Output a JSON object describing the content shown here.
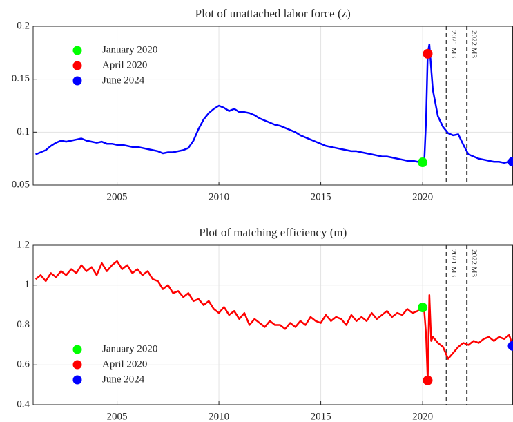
{
  "chart_data": [
    {
      "type": "line",
      "title": "Plot of unattached labor force (z)",
      "color": "#0000ff",
      "x": [
        2001,
        2001.25,
        2001.5,
        2001.75,
        2002,
        2002.25,
        2002.5,
        2002.75,
        2003,
        2003.25,
        2003.5,
        2003.75,
        2004,
        2004.25,
        2004.5,
        2004.75,
        2005,
        2005.25,
        2005.5,
        2005.75,
        2006,
        2006.25,
        2006.5,
        2006.75,
        2007,
        2007.25,
        2007.5,
        2007.75,
        2008,
        2008.25,
        2008.5,
        2008.75,
        2009,
        2009.25,
        2009.5,
        2009.75,
        2010,
        2010.25,
        2010.5,
        2010.75,
        2011,
        2011.25,
        2011.5,
        2011.75,
        2012,
        2012.25,
        2012.5,
        2012.75,
        2013,
        2013.25,
        2013.5,
        2013.75,
        2014,
        2014.25,
        2014.5,
        2014.75,
        2015,
        2015.25,
        2015.5,
        2015.75,
        2016,
        2016.25,
        2016.5,
        2016.75,
        2017,
        2017.25,
        2017.5,
        2017.75,
        2018,
        2018.25,
        2018.5,
        2018.75,
        2019,
        2019.25,
        2019.5,
        2019.75,
        2020,
        2020.08,
        2020.17,
        2020.25,
        2020.33,
        2020.42,
        2020.5,
        2020.75,
        2021,
        2021.25,
        2021.5,
        2021.75,
        2022,
        2022.25,
        2022.5,
        2022.75,
        2023,
        2023.25,
        2023.5,
        2023.75,
        2024,
        2024.25,
        2024.42
      ],
      "values": [
        0.079,
        0.081,
        0.083,
        0.087,
        0.09,
        0.092,
        0.091,
        0.092,
        0.093,
        0.094,
        0.092,
        0.091,
        0.09,
        0.091,
        0.089,
        0.089,
        0.088,
        0.088,
        0.087,
        0.086,
        0.086,
        0.085,
        0.084,
        0.083,
        0.082,
        0.08,
        0.081,
        0.081,
        0.082,
        0.083,
        0.085,
        0.092,
        0.103,
        0.112,
        0.118,
        0.122,
        0.125,
        0.123,
        0.12,
        0.122,
        0.119,
        0.119,
        0.118,
        0.116,
        0.113,
        0.111,
        0.109,
        0.107,
        0.106,
        0.104,
        0.102,
        0.1,
        0.097,
        0.095,
        0.093,
        0.091,
        0.089,
        0.087,
        0.086,
        0.085,
        0.084,
        0.083,
        0.082,
        0.082,
        0.081,
        0.08,
        0.079,
        0.078,
        0.077,
        0.077,
        0.076,
        0.075,
        0.074,
        0.073,
        0.073,
        0.072,
        0.0715,
        0.072,
        0.112,
        0.174,
        0.183,
        0.16,
        0.14,
        0.115,
        0.105,
        0.099,
        0.097,
        0.098,
        0.088,
        0.079,
        0.077,
        0.075,
        0.074,
        0.073,
        0.072,
        0.072,
        0.071,
        0.072,
        0.072
      ],
      "xlim": [
        2000.88,
        2024.42
      ],
      "xticks": [
        2005,
        2010,
        2015,
        2020
      ],
      "ylim": [
        0.05,
        0.2
      ],
      "yticks": [
        0.05,
        0.1,
        0.15,
        0.2
      ],
      "grid": true,
      "legend": "upper left",
      "highlights": [
        {
          "name": "January 2020",
          "color": "#00ff00",
          "x": 2020,
          "y": 0.0715
        },
        {
          "name": "April 2020",
          "color": "#ff0000",
          "x": 2020.25,
          "y": 0.174
        },
        {
          "name": "June 2024",
          "color": "#0000ff",
          "x": 2024.42,
          "y": 0.072
        }
      ],
      "vlines": [
        {
          "x": 2021.17,
          "label": "2021 M3"
        },
        {
          "x": 2022.17,
          "label": "2022 M3"
        }
      ]
    },
    {
      "type": "line",
      "title": "Plot of matching efficiency (m)",
      "color": "#ff0000",
      "x": [
        2001,
        2001.25,
        2001.5,
        2001.75,
        2002,
        2002.25,
        2002.5,
        2002.75,
        2003,
        2003.25,
        2003.5,
        2003.75,
        2004,
        2004.25,
        2004.5,
        2004.75,
        2005,
        2005.25,
        2005.5,
        2005.75,
        2006,
        2006.25,
        2006.5,
        2006.75,
        2007,
        2007.25,
        2007.5,
        2007.75,
        2008,
        2008.25,
        2008.5,
        2008.75,
        2009,
        2009.25,
        2009.5,
        2009.75,
        2010,
        2010.25,
        2010.5,
        2010.75,
        2011,
        2011.25,
        2011.5,
        2011.75,
        2012,
        2012.25,
        2012.5,
        2012.75,
        2013,
        2013.25,
        2013.5,
        2013.75,
        2014,
        2014.25,
        2014.5,
        2014.75,
        2015,
        2015.25,
        2015.5,
        2015.75,
        2016,
        2016.25,
        2016.5,
        2016.75,
        2017,
        2017.25,
        2017.5,
        2017.75,
        2018,
        2018.25,
        2018.5,
        2018.75,
        2019,
        2019.25,
        2019.5,
        2019.75,
        2020,
        2020.08,
        2020.17,
        2020.25,
        2020.33,
        2020.42,
        2020.5,
        2020.75,
        2021,
        2021.25,
        2021.5,
        2021.75,
        2022,
        2022.25,
        2022.5,
        2022.75,
        2023,
        2023.25,
        2023.5,
        2023.75,
        2024,
        2024.25,
        2024.42
      ],
      "values": [
        1.03,
        1.05,
        1.02,
        1.06,
        1.04,
        1.07,
        1.05,
        1.08,
        1.06,
        1.1,
        1.07,
        1.09,
        1.05,
        1.11,
        1.07,
        1.1,
        1.12,
        1.08,
        1.1,
        1.06,
        1.08,
        1.05,
        1.07,
        1.03,
        1.02,
        0.98,
        1.0,
        0.96,
        0.97,
        0.94,
        0.96,
        0.92,
        0.93,
        0.9,
        0.92,
        0.88,
        0.86,
        0.89,
        0.85,
        0.87,
        0.83,
        0.86,
        0.8,
        0.83,
        0.81,
        0.79,
        0.82,
        0.8,
        0.8,
        0.78,
        0.81,
        0.79,
        0.82,
        0.8,
        0.84,
        0.82,
        0.81,
        0.85,
        0.82,
        0.84,
        0.83,
        0.8,
        0.85,
        0.82,
        0.84,
        0.82,
        0.86,
        0.83,
        0.85,
        0.87,
        0.84,
        0.86,
        0.85,
        0.88,
        0.86,
        0.87,
        0.888,
        0.87,
        0.75,
        0.522,
        0.95,
        0.72,
        0.74,
        0.71,
        0.69,
        0.63,
        0.66,
        0.69,
        0.71,
        0.7,
        0.72,
        0.71,
        0.73,
        0.74,
        0.72,
        0.74,
        0.73,
        0.75,
        0.695
      ],
      "xlim": [
        2000.88,
        2024.42
      ],
      "xticks": [
        2005,
        2010,
        2015,
        2020
      ],
      "ylim": [
        0.4,
        1.2
      ],
      "yticks": [
        0.4,
        0.6,
        0.8,
        1,
        1.2
      ],
      "grid": true,
      "legend": "lower left",
      "highlights": [
        {
          "name": "January 2020",
          "color": "#00ff00",
          "x": 2020,
          "y": 0.888
        },
        {
          "name": "April 2020",
          "color": "#ff0000",
          "x": 2020.25,
          "y": 0.522
        },
        {
          "name": "June 2024",
          "color": "#0000ff",
          "x": 2024.42,
          "y": 0.695
        }
      ],
      "vlines": [
        {
          "x": 2021.17,
          "label": "2021 M3"
        },
        {
          "x": 2022.17,
          "label": "2022 M3"
        }
      ]
    }
  ]
}
